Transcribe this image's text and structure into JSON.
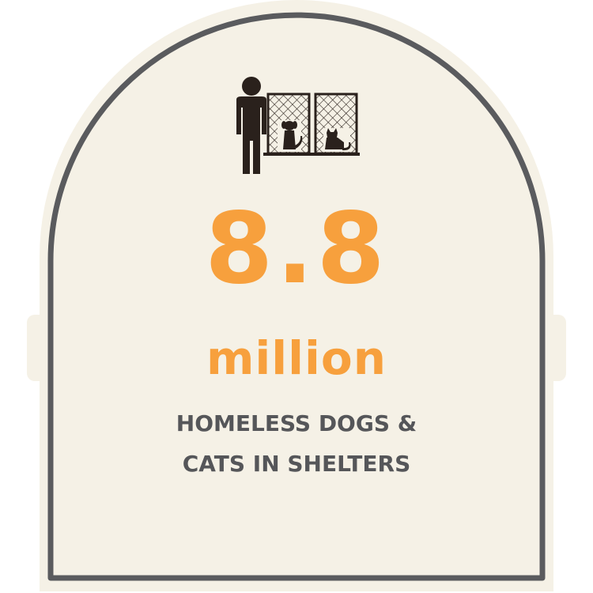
{
  "colors": {
    "background": "#ffffff",
    "panel_fill": "#f5f1e6",
    "outline": "#5a5b5e",
    "accent": "#f7a03d",
    "caption": "#555659",
    "icon": "#2a211c"
  },
  "icon": "person-at-shelter-kennels-icon",
  "stat": {
    "value": "8.8",
    "unit": "million"
  },
  "caption": {
    "line1": "HOMELESS DOGS &",
    "line2": "CATS IN SHELTERS"
  }
}
